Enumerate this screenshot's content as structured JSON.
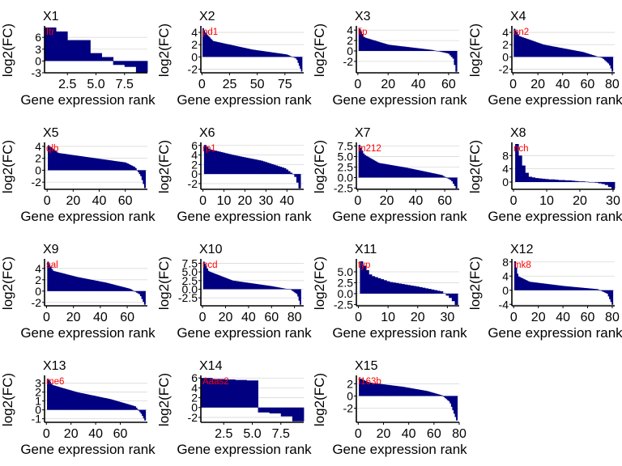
{
  "figure": {
    "xlabel": "Gene expression rank",
    "ylabel": "log2(FC)",
    "colors": {
      "bar": "#000080",
      "gene_label": "#ff0000",
      "grid": "#d9d9d9",
      "axis": "#000000"
    }
  },
  "chart_data": [
    {
      "type": "bar",
      "title": "X1",
      "gene_label": "Itr",
      "xlim": [
        0.5,
        9.5
      ],
      "ylim": [
        -3,
        8.5
      ],
      "xticks": [
        2.5,
        5.0,
        7.5
      ],
      "xtick_labels": [
        "2.5",
        "5.0",
        "7.5"
      ],
      "yticks": [
        -3,
        0,
        3,
        6
      ],
      "ytick_labels": [
        "-3",
        "0",
        "3",
        "6"
      ],
      "values": [
        8.5,
        7.5,
        5.3,
        5.3,
        2.0,
        1.0,
        -1.0,
        -1.5,
        -2.9
      ]
    },
    {
      "type": "bar",
      "title": "X2",
      "gene_label": "pd1",
      "n": 90,
      "xlim": [
        -1,
        92
      ],
      "ylim": [
        -2.6,
        4.8
      ],
      "xticks": [
        0,
        25,
        50,
        75
      ],
      "xtick_labels": [
        "0",
        "25",
        "50",
        "75"
      ],
      "yticks": [
        -2,
        0,
        2,
        4
      ],
      "ytick_labels": [
        "-2",
        "0",
        "2",
        "4"
      ],
      "profile": [
        [
          0,
          4.7
        ],
        [
          0.02,
          4.0
        ],
        [
          0.1,
          2.6
        ],
        [
          0.5,
          1.2
        ],
        [
          0.85,
          0.4
        ],
        [
          0.95,
          -0.3
        ],
        [
          1.0,
          -2.4
        ]
      ]
    },
    {
      "type": "bar",
      "title": "X3",
      "gene_label": "lip",
      "n": 65,
      "xlim": [
        -1,
        67
      ],
      "ylim": [
        -4.2,
        4.5
      ],
      "xticks": [
        0,
        20,
        40,
        60
      ],
      "xtick_labels": [
        "0",
        "20",
        "40",
        "60"
      ],
      "yticks": [
        -2,
        0,
        2,
        4
      ],
      "ytick_labels": [
        "-2",
        "0",
        "2",
        "4"
      ],
      "profile": [
        [
          0,
          4.3
        ],
        [
          0.05,
          2.6
        ],
        [
          0.3,
          1.2
        ],
        [
          0.75,
          0.2
        ],
        [
          0.92,
          -0.5
        ],
        [
          0.97,
          -1.5
        ],
        [
          1.0,
          -4.0
        ]
      ]
    },
    {
      "type": "bar",
      "title": "X4",
      "gene_label": "on2",
      "n": 80,
      "xlim": [
        -1,
        82
      ],
      "ylim": [
        -2.6,
        4.8
      ],
      "xticks": [
        0,
        20,
        40,
        60,
        80
      ],
      "xtick_labels": [
        "0",
        "20",
        "40",
        "60",
        "80"
      ],
      "yticks": [
        -2,
        0,
        2,
        4
      ],
      "ytick_labels": [
        "-2",
        "0",
        "2",
        "4"
      ],
      "profile": [
        [
          0,
          4.6
        ],
        [
          0.05,
          3.4
        ],
        [
          0.3,
          2.0
        ],
        [
          0.7,
          0.8
        ],
        [
          0.9,
          -0.2
        ],
        [
          0.97,
          -1.2
        ],
        [
          1.0,
          -2.4
        ]
      ]
    },
    {
      "type": "bar",
      "title": "X5",
      "gene_label": "qlb",
      "n": 75,
      "xlim": [
        -2,
        77
      ],
      "ylim": [
        -3.2,
        4.4
      ],
      "xticks": [
        0,
        20,
        40,
        60
      ],
      "xtick_labels": [
        "0",
        "20",
        "40",
        "60"
      ],
      "yticks": [
        -2,
        0,
        2,
        4
      ],
      "ytick_labels": [
        "-2",
        "0",
        "2",
        "4"
      ],
      "profile": [
        [
          0,
          4.2
        ],
        [
          0.1,
          2.9
        ],
        [
          0.45,
          2.1
        ],
        [
          0.8,
          1.3
        ],
        [
          0.9,
          0.5
        ],
        [
          0.96,
          -1.0
        ],
        [
          1.0,
          -3.0
        ]
      ]
    },
    {
      "type": "bar",
      "title": "X6",
      "gene_label": "rp1",
      "n": 46,
      "xlim": [
        -1,
        48
      ],
      "ylim": [
        -3.2,
        6.3
      ],
      "xticks": [
        0,
        10,
        20,
        30,
        40
      ],
      "xtick_labels": [
        "0",
        "10",
        "20",
        "30",
        "40"
      ],
      "yticks": [
        -2,
        0,
        2,
        4,
        6
      ],
      "ytick_labels": [
        "-2",
        "0",
        "2",
        "4",
        "6"
      ],
      "profile": [
        [
          0,
          6.1
        ],
        [
          0.05,
          5.2
        ],
        [
          0.3,
          4.0
        ],
        [
          0.6,
          2.8
        ],
        [
          0.85,
          1.2
        ],
        [
          0.95,
          -0.3
        ],
        [
          1.0,
          -3.0
        ]
      ]
    },
    {
      "type": "bar",
      "title": "X7",
      "gene_label": "m212",
      "n": 68,
      "xlim": [
        -1,
        70
      ],
      "ylim": [
        -2.8,
        8.0
      ],
      "xticks": [
        0,
        20,
        40,
        60
      ],
      "xtick_labels": [
        "0",
        "20",
        "40",
        "60"
      ],
      "yticks": [
        -2.5,
        0.0,
        2.5,
        5.0,
        7.5
      ],
      "ytick_labels": [
        "-2.5",
        "0.0",
        "2.5",
        "5.0",
        "7.5"
      ],
      "profile": [
        [
          0,
          7.8
        ],
        [
          0.05,
          5.5
        ],
        [
          0.2,
          3.5
        ],
        [
          0.5,
          2.3
        ],
        [
          0.85,
          0.6
        ],
        [
          0.95,
          -0.7
        ],
        [
          1.0,
          -2.6
        ]
      ]
    },
    {
      "type": "bar",
      "title": "X8",
      "gene_label": "nch",
      "n": 30,
      "xlim": [
        -0.5,
        30.5
      ],
      "ylim": [
        -2.2,
        11.5
      ],
      "xticks": [
        0,
        10,
        20,
        30
      ],
      "xtick_labels": [
        "0",
        "10",
        "20",
        "30"
      ],
      "yticks": [
        0,
        4,
        8
      ],
      "ytick_labels": [
        "0",
        "4",
        "8"
      ],
      "values": [
        11.5,
        8.0,
        5.0,
        2.8,
        1.6,
        1.4,
        1.2,
        1.1,
        1.0,
        0.9,
        0.8,
        0.8,
        0.7,
        0.6,
        0.6,
        0.5,
        0.5,
        0.4,
        0.3,
        0.2,
        0.2,
        0.1,
        0.0,
        -0.1,
        -0.2,
        -0.4,
        -0.6,
        -0.9,
        -1.5,
        -2.0
      ]
    },
    {
      "type": "bar",
      "title": "X9",
      "gene_label": "sal",
      "n": 73,
      "xlim": [
        -1.5,
        75
      ],
      "ylim": [
        -2.6,
        5.4
      ],
      "xticks": [
        0,
        20,
        40,
        60
      ],
      "xtick_labels": [
        "0",
        "20",
        "40",
        "60"
      ],
      "yticks": [
        -2,
        0,
        2,
        4
      ],
      "ytick_labels": [
        "-2",
        "0",
        "2",
        "4"
      ],
      "profile": [
        [
          0,
          5.2
        ],
        [
          0.05,
          3.6
        ],
        [
          0.3,
          2.5
        ],
        [
          0.6,
          1.5
        ],
        [
          0.85,
          0.4
        ],
        [
          0.95,
          -0.6
        ],
        [
          1.0,
          -2.4
        ]
      ]
    },
    {
      "type": "bar",
      "title": "X10",
      "gene_label": "ncd",
      "n": 85,
      "xlim": [
        -1.5,
        88
      ],
      "ylim": [
        -4.8,
        8.3
      ],
      "xticks": [
        0,
        20,
        40,
        60,
        80
      ],
      "xtick_labels": [
        "0",
        "20",
        "40",
        "60",
        "80"
      ],
      "yticks": [
        -2.5,
        0.0,
        2.5,
        5.0,
        7.5
      ],
      "ytick_labels": [
        "-2.5",
        "0.0",
        "2.5",
        "5.0",
        "7.5"
      ],
      "profile": [
        [
          0,
          8.0
        ],
        [
          0.05,
          5.2
        ],
        [
          0.3,
          2.5
        ],
        [
          0.7,
          0.9
        ],
        [
          0.9,
          -0.1
        ],
        [
          0.97,
          -1.5
        ],
        [
          1.0,
          -4.5
        ]
      ]
    },
    {
      "type": "bar",
      "title": "X11",
      "gene_label": "typ",
      "n": 33,
      "xlim": [
        -0.7,
        34
      ],
      "ylim": [
        -2.8,
        7.6
      ],
      "xticks": [
        0,
        10,
        20,
        30
      ],
      "xtick_labels": [
        "0",
        "10",
        "20",
        "30"
      ],
      "yticks": [
        -2.5,
        0.0,
        2.5,
        5.0
      ],
      "ytick_labels": [
        "-2.5",
        "0.0",
        "2.5",
        "5.0"
      ],
      "profile": [
        [
          0,
          7.4
        ],
        [
          0.1,
          4.2
        ],
        [
          0.3,
          2.7
        ],
        [
          0.6,
          1.6
        ],
        [
          0.85,
          0.5
        ],
        [
          0.95,
          -1.2
        ],
        [
          1.0,
          -2.6
        ]
      ]
    },
    {
      "type": "bar",
      "title": "X12",
      "gene_label": "mk8",
      "n": 80,
      "xlim": [
        -1.5,
        82
      ],
      "ylim": [
        -4.4,
        8.4
      ],
      "xticks": [
        0,
        20,
        40,
        60,
        80
      ],
      "xtick_labels": [
        "0",
        "20",
        "40",
        "60",
        "80"
      ],
      "yticks": [
        -4,
        0,
        4,
        8
      ],
      "ytick_labels": [
        "-4",
        "0",
        "4",
        "8"
      ],
      "profile": [
        [
          0,
          8.2
        ],
        [
          0.03,
          4.0
        ],
        [
          0.15,
          2.4
        ],
        [
          0.5,
          1.2
        ],
        [
          0.85,
          0.3
        ],
        [
          0.95,
          -1.0
        ],
        [
          1.0,
          -4.1
        ]
      ]
    },
    {
      "type": "bar",
      "title": "X13",
      "gene_label": "me6",
      "n": 80,
      "xlim": [
        -1.5,
        82
      ],
      "ylim": [
        -1.4,
        3.7
      ],
      "xticks": [
        0,
        20,
        40,
        60
      ],
      "xtick_labels": [
        "0",
        "20",
        "40",
        "60"
      ],
      "yticks": [
        -1,
        0,
        1,
        2,
        3
      ],
      "ytick_labels": [
        "-1",
        "0",
        "1",
        "2",
        "3"
      ],
      "profile": [
        [
          0,
          3.5
        ],
        [
          0.05,
          2.8
        ],
        [
          0.3,
          2.0
        ],
        [
          0.65,
          1.2
        ],
        [
          0.9,
          0.4
        ],
        [
          0.96,
          -0.4
        ],
        [
          1.0,
          -1.2
        ]
      ]
    },
    {
      "type": "bar",
      "title": "X14",
      "gene_label": "Aaas2",
      "xlim": [
        0.5,
        9.5
      ],
      "ylim": [
        -3.0,
        6.2
      ],
      "xticks": [
        2.5,
        5.0,
        7.5
      ],
      "xtick_labels": [
        "2.5",
        "5.0",
        "7.5"
      ],
      "yticks": [
        -2,
        0,
        2,
        4,
        6
      ],
      "ytick_labels": [
        "-2",
        "0",
        "2",
        "4",
        "6"
      ],
      "values": [
        6.0,
        5.8,
        5.7,
        5.6,
        5.5,
        -1.0,
        -1.2,
        -1.8,
        -2.8
      ]
    },
    {
      "type": "bar",
      "title": "X15",
      "gene_label": "f163b",
      "n": 78,
      "xlim": [
        -1.5,
        80
      ],
      "ylim": [
        -4.3,
        3.1
      ],
      "xticks": [
        0,
        20,
        40,
        60,
        80
      ],
      "xtick_labels": [
        "0",
        "20",
        "40",
        "60",
        "80"
      ],
      "yticks": [
        -2,
        0,
        2
      ],
      "ytick_labels": [
        "-2",
        "0",
        "2"
      ],
      "profile": [
        [
          0,
          2.9
        ],
        [
          0.1,
          2.2
        ],
        [
          0.45,
          1.5
        ],
        [
          0.7,
          0.8
        ],
        [
          0.85,
          0.1
        ],
        [
          0.93,
          -1.0
        ],
        [
          1.0,
          -4.0
        ]
      ]
    }
  ]
}
